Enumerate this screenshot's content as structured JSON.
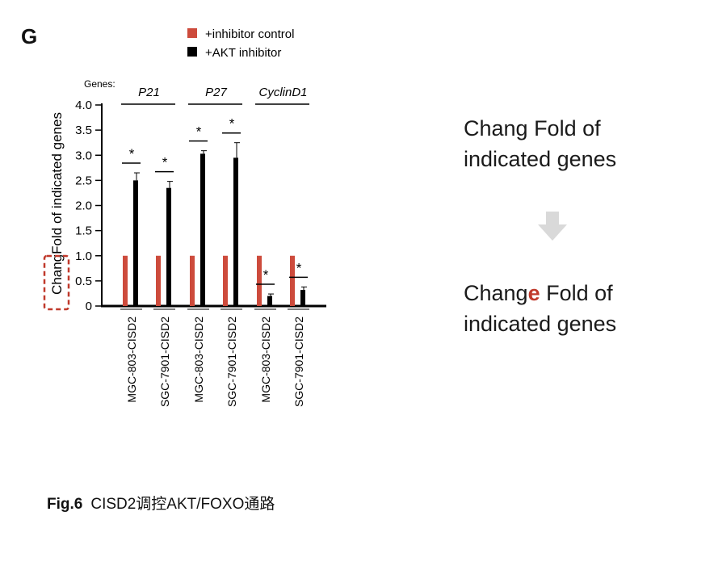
{
  "panel_letter": "G",
  "chart_data": {
    "type": "bar",
    "ylabel": "Fold of indicated genes",
    "ylabel_erroneous_prefix": "Chang",
    "ylim": [
      0,
      4.0
    ],
    "yticks": [
      "0",
      "0.5",
      "1.0",
      "1.5",
      "2.0",
      "2.5",
      "3.0",
      "3.5",
      "4.0"
    ],
    "genes_label": "Genes:",
    "gene_groups": [
      {
        "name": "P21",
        "cell_lines": [
          "MGC-803-CISD2",
          "SGC-7901-CISD2"
        ]
      },
      {
        "name": "P27",
        "cell_lines": [
          "MGC-803-CISD2",
          "SGC-7901-CISD2"
        ]
      },
      {
        "name": "CyclinD1",
        "cell_lines": [
          "MGC-803-CISD2",
          "SGC-7901-CISD2"
        ]
      }
    ],
    "categories": [
      "MGC-803-CISD2",
      "SGC-7901-CISD2",
      "MGC-803-CISD2",
      "SGC-7901-CISD2",
      "MGC-803-CISD2",
      "SGC-7901-CISD2"
    ],
    "series": [
      {
        "name": "+inhibitor control",
        "color": "#cd4b3c",
        "values": [
          1.0,
          1.0,
          1.0,
          1.0,
          1.0,
          1.0
        ],
        "errors": [
          0,
          0,
          0,
          0,
          0,
          0
        ]
      },
      {
        "name": "+AKT inhibitor",
        "color": "#000000",
        "values": [
          2.5,
          2.35,
          3.03,
          2.95,
          0.2,
          0.32
        ],
        "errors": [
          0.15,
          0.13,
          0.06,
          0.3,
          0.04,
          0.06
        ]
      }
    ],
    "significance": [
      "*",
      "*",
      "*",
      "*",
      "*",
      "*"
    ]
  },
  "correction": {
    "before_line1": "Chang Fold of",
    "before_line2": "indicated genes",
    "after_line1_prefix": "Chang",
    "after_line1_fix": "e",
    "after_line1_suffix": " Fold of",
    "after_line2": "indicated genes",
    "arrow_icon": "arrow-down-icon",
    "arrow_color": "#d9d9d9",
    "highlight_color": "#c0392b"
  },
  "caption": {
    "label": "Fig.6",
    "text": "CISD2调控AKT/FOXO通路"
  }
}
